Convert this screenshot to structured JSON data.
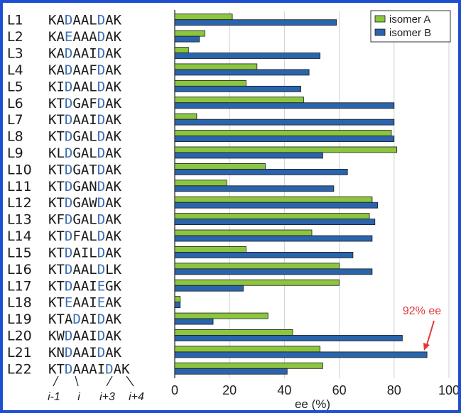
{
  "chart_data": {
    "type": "bar",
    "orientation": "horizontal",
    "xlabel": "ee (%)",
    "xlim": [
      0,
      100
    ],
    "xticks": [
      0,
      20,
      40,
      60,
      80,
      100
    ],
    "grid": true,
    "legend_position": "top-right",
    "categories": [
      "L1",
      "L2",
      "L3",
      "L4",
      "L5",
      "L6",
      "L7",
      "L8",
      "L9",
      "L10",
      "L11",
      "L12",
      "L13",
      "L14",
      "L15",
      "L16",
      "L17",
      "L18",
      "L19",
      "L20",
      "L21",
      "L22"
    ],
    "sequences": [
      "KADAALDAK",
      "KAEAAADAK",
      "KADAAIDAK",
      "KADAAFDAK",
      "KIDAALDAK",
      "KTDGAFDAK",
      "KTDAAIDAK",
      "KTDGALDAK",
      "KLDGALDAK",
      "KTDGATDAK",
      "KTDGANDAK",
      "KTDGAWDAK",
      "KFDGALDAK",
      "KTDFALDAK",
      "KTDAILDAK",
      "KTDAALDLK",
      "KTDAAIEGK",
      "KTEAAIEAK",
      "KTADAIDAK",
      "KWDAAIDAK",
      "KNDAAIDAK",
      "KTDAAAIDAK"
    ],
    "highlight_positions": [
      [
        2,
        6
      ],
      [
        2,
        6
      ],
      [
        2,
        6
      ],
      [
        2,
        6
      ],
      [
        2,
        6
      ],
      [
        2,
        6
      ],
      [
        2,
        6
      ],
      [
        2,
        6
      ],
      [
        2,
        6
      ],
      [
        2,
        6
      ],
      [
        2,
        6
      ],
      [
        2,
        6
      ],
      [
        2,
        6
      ],
      [
        2,
        6
      ],
      [
        2,
        6
      ],
      [
        2,
        6
      ],
      [
        2,
        6
      ],
      [
        2,
        6
      ],
      [
        3,
        6
      ],
      [
        2,
        6
      ],
      [
        2,
        6
      ],
      [
        2,
        7
      ]
    ],
    "series": [
      {
        "name": "isomer A",
        "color": "#8cc63f",
        "values": [
          21,
          11,
          5,
          30,
          26,
          47,
          8,
          79,
          81,
          33,
          19,
          72,
          71,
          50,
          26,
          60,
          60,
          2,
          34,
          43,
          53,
          54
        ]
      },
      {
        "name": "isomer B",
        "color": "#2a64ad",
        "values": [
          59,
          9,
          53,
          49,
          46,
          80,
          80,
          80,
          54,
          63,
          58,
          74,
          73,
          72,
          65,
          72,
          25,
          2,
          14,
          83,
          92,
          41
        ]
      }
    ],
    "annotation": {
      "text": "92% ee",
      "color": "#e03a3a"
    },
    "position_labels": [
      "i-1",
      "i",
      "i+3",
      "i+4"
    ]
  }
}
